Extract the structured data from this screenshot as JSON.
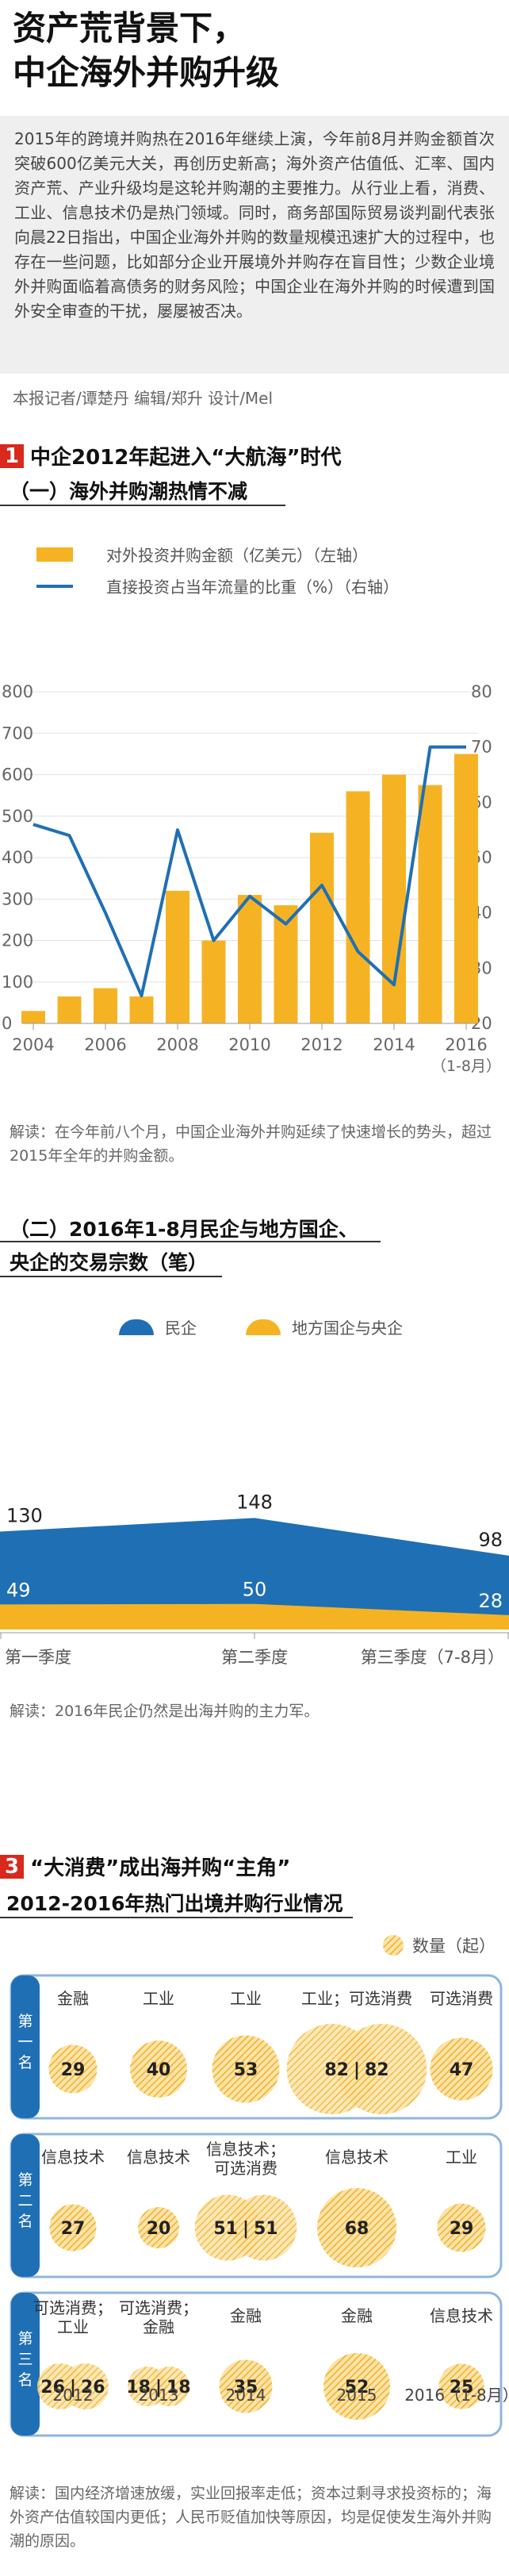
{
  "title_line1": "资产荒背景下，",
  "title_line2": "中企海外并购升级",
  "intro": "2015年的跨境并购热在2016年继续上演，今年前8月并购金额首次突破600亿美元大关，再创历史新高；海外资产估值低、汇率、国内资产荒、产业升级均是这轮并购潮的主要推力。从行业上看，消费、工业、信息技术仍是热门领域。同时，商务部国际贸易谈判副代表张向晨22日指出，中国企业海外并购的数量规模迅速扩大的过程中，也存在一些问题，比如部分企业开展境外并购存在盲目性；少数企业境外并购面临着高债务的财务风险；中国企业在海外并购的时候遭到国外安全审查的干扰，屡屡被否决。",
  "credit": "本报记者/谭楚丹 编辑/郑升 设计/Mel",
  "section1": {
    "num": "1",
    "title": "中企2012年起进入“大航海”时代",
    "sub": "（一）海外并购潮热情不减",
    "interp": "解读：在今年前八个月，中国企业海外并购延续了快速增长的势头，超过2015年全年的并购金额。"
  },
  "section2": {
    "sub_line1": "（二）2016年1-8月民企与地方国企、",
    "sub_line2": "央企的交易宗数（笔）",
    "interp": "解读：2016年民企仍然是出海并购的主力军。"
  },
  "section3": {
    "num": "3",
    "title": "“大消费”成出海并购“主角”",
    "sub": "2012-2016年热门出境并购行业情况",
    "interp": "解读：国内经济增速放缓，实业回报率走低；资本过剩寻求投资标的；海外资产估值较国内更低；人民币贬值加快等原因，均是促使发生海外并购潮的原因。"
  },
  "colors": {
    "bar": "#f5b324",
    "line": "#1f6fb5",
    "private": "#1f6fb5",
    "state": "#f5b324",
    "ring": "#8fb6dc",
    "red": "#d9281c"
  },
  "chart_data": [
    {
      "type": "bar+line",
      "legend": [
        "对外投资并购金额（亿美元）（左轴）",
        "直接投资占当年流量的比重（%）（右轴）"
      ],
      "x": [
        "2004",
        "2005",
        "2006",
        "2007",
        "2008",
        "2009",
        "2010",
        "2011",
        "2012",
        "2013",
        "2014",
        "2015",
        "2016"
      ],
      "x_ticks": [
        "2004",
        "2006",
        "2008",
        "2010",
        "2012",
        "2014",
        "2016"
      ],
      "x_note": "（1-8月）",
      "series": [
        {
          "name": "对外投资并购金额（亿美元）（左轴）",
          "axis": "left",
          "kind": "bar",
          "values": [
            30,
            65,
            85,
            65,
            320,
            200,
            310,
            285,
            460,
            560,
            600,
            575,
            650
          ]
        },
        {
          "name": "直接投资占当年流量的比重（%）（右轴）",
          "axis": "right",
          "kind": "line",
          "values": [
            56,
            54,
            40,
            25,
            55,
            35,
            43,
            38,
            45,
            33,
            27,
            70,
            70
          ]
        }
      ],
      "y_left_ticks": [
        "0",
        "100",
        "200",
        "300",
        "400",
        "500",
        "600",
        "700",
        "800"
      ],
      "y_left_lim": [
        0,
        800
      ],
      "y_right_ticks": [
        "20",
        "30",
        "40",
        "50",
        "60",
        "70",
        "80"
      ],
      "y_right_lim": [
        20,
        80
      ]
    },
    {
      "type": "area",
      "legend": [
        "民企",
        "地方国企与央企"
      ],
      "categories": [
        "第一季度",
        "第二季度",
        "第三季度（7-8月）"
      ],
      "series": [
        {
          "name": "民企",
          "values": [
            130,
            148,
            98
          ]
        },
        {
          "name": "地方国企与央企",
          "values": [
            49,
            50,
            28
          ]
        }
      ]
    },
    {
      "type": "table",
      "legend": "数量（起）",
      "rows": [
        "第一名",
        "第二名",
        "第三名"
      ],
      "columns": [
        "2012",
        "2013",
        "2014",
        "2015",
        "2016（1-8月）"
      ],
      "cells": [
        [
          {
            "label": "金融",
            "values": [
              "29"
            ]
          },
          {
            "label": "工业",
            "values": [
              "40"
            ]
          },
          {
            "label": "工业",
            "values": [
              "53"
            ]
          },
          {
            "label": "工业；可选消费",
            "values": [
              "82",
              "82"
            ]
          },
          {
            "label": "可选消费",
            "values": [
              "47"
            ]
          }
        ],
        [
          {
            "label": "信息技术",
            "values": [
              "27"
            ]
          },
          {
            "label": "信息技术",
            "values": [
              "20"
            ]
          },
          {
            "label": "信息技术；可选消费",
            "values": [
              "51",
              "51"
            ]
          },
          {
            "label": "信息技术",
            "values": [
              "68"
            ]
          },
          {
            "label": "工业",
            "values": [
              "29"
            ]
          }
        ],
        [
          {
            "label": "可选消费；工业",
            "values": [
              "26",
              "26"
            ]
          },
          {
            "label": "可选消费；金融",
            "values": [
              "18",
              "18"
            ]
          },
          {
            "label": "金融",
            "values": [
              "35"
            ]
          },
          {
            "label": "金融",
            "values": [
              "52"
            ]
          },
          {
            "label": "信息技术",
            "values": [
              "25"
            ]
          }
        ]
      ]
    }
  ]
}
